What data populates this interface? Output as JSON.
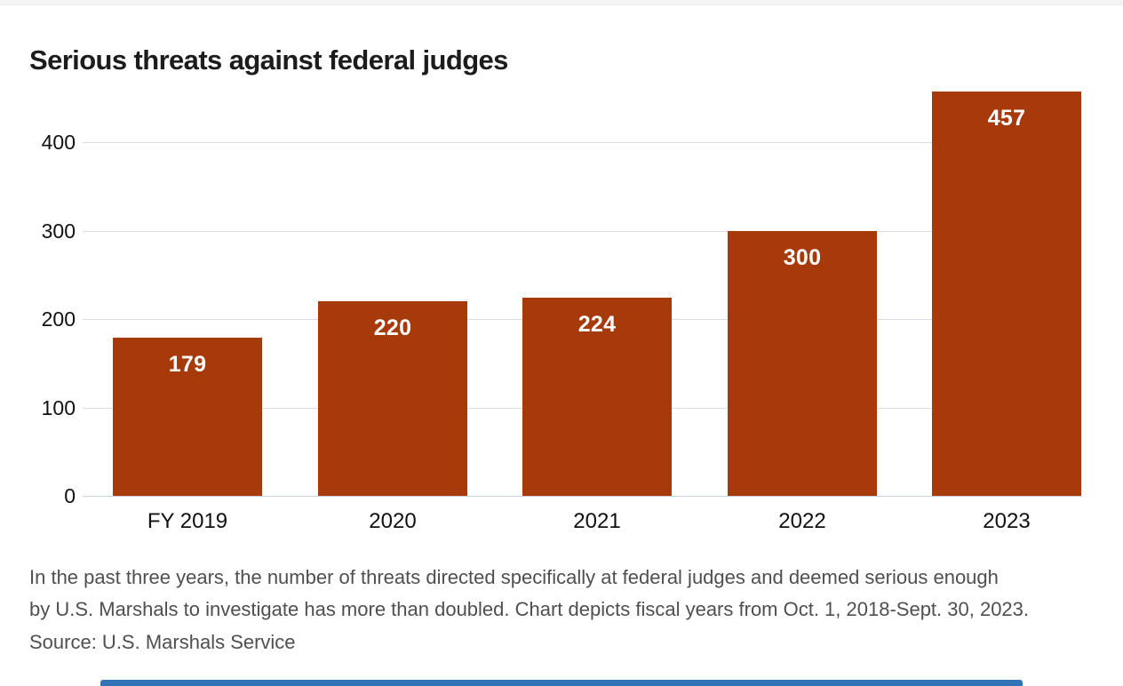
{
  "page": {
    "background_color": "#ffffff",
    "top_strip_color": "#f4f4f5",
    "bottom_accent_color": "#3273b8"
  },
  "chart_data": {
    "type": "bar",
    "title": "Serious threats against federal judges",
    "categories": [
      "FY 2019",
      "2020",
      "2021",
      "2022",
      "2023"
    ],
    "values": [
      179,
      220,
      224,
      300,
      457
    ],
    "yticks": [
      0,
      100,
      200,
      300,
      400
    ],
    "ylim": [
      0,
      462
    ],
    "xlabel": "",
    "ylabel": "",
    "legend": "none",
    "grid": "horizontal gridlines at yticks, no vertical gridlines",
    "value_labels_position": "inside top of bars",
    "bar_color": "#a73a0a",
    "value_label_color": "#ffffff",
    "axis_label_color": "#111111",
    "gridline_color": "#d8dee8",
    "baseline_color": "#c9d1dc"
  },
  "caption": {
    "line1": "In the past three years, the number of threats directed specifically at federal judges and deemed serious enough",
    "line2": "by U.S. Marshals to investigate has more than doubled. Chart depicts fiscal years from Oct. 1, 2018-Sept. 30, 2023.",
    "source": "Source: U.S. Marshals Service"
  }
}
